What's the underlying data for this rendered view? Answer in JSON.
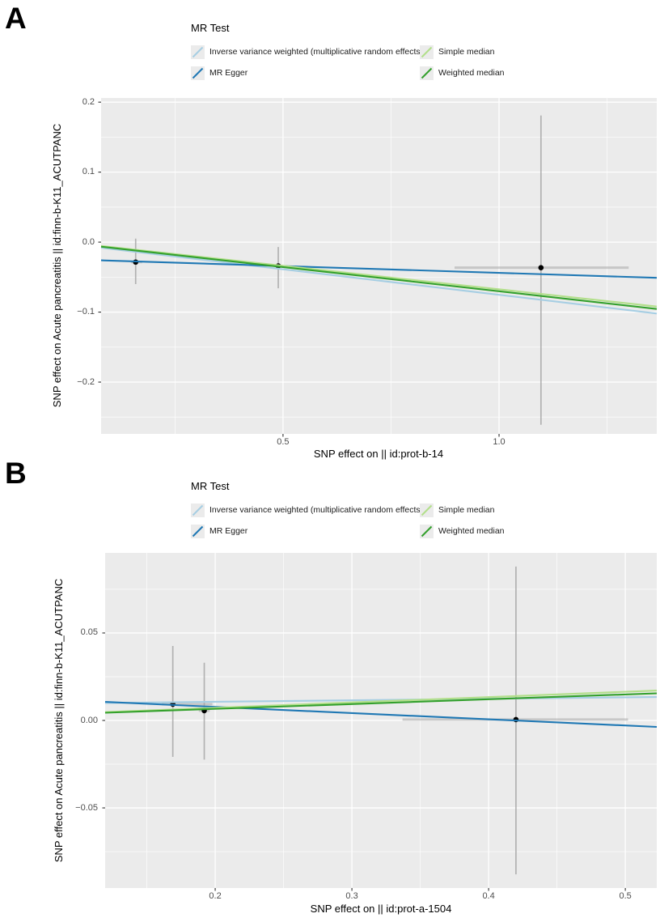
{
  "figure": {
    "description": "Two-panel MR scatter plot",
    "panel_labels": [
      "A",
      "B"
    ]
  },
  "colors": {
    "ivw": "#A6CEE3",
    "mr_egger": "#1F78B4",
    "simple_median": "#B2DF8A",
    "weighted_median": "#33A02C",
    "panel_background": "#EBEBEB",
    "gridline": "#FFFFFF",
    "error_bar": "#A3A3A3",
    "point": "#000000",
    "tick_text": "#4D4D4D",
    "tick_mark": "#333333"
  },
  "chart_data": [
    {
      "type": "scatter",
      "panel_label": "A",
      "title": "",
      "xlabel": "SNP effect on  || id:prot-b-14",
      "ylabel": "SNP effect on Acute pancreatitis || id:finn-b-K11_ACUTPANC",
      "xlim": [
        0.079,
        1.365
      ],
      "ylim": [
        -0.274,
        0.206
      ],
      "grid": "on",
      "legend_position": "top",
      "legend": {
        "title": "MR Test",
        "entries": [
          {
            "label": "Inverse variance weighted (multiplicative random effects)",
            "color": "#A6CEE3"
          },
          {
            "label": "MR Egger",
            "color": "#1F78B4"
          },
          {
            "label": "Simple median",
            "color": "#B2DF8A"
          },
          {
            "label": "Weighted median",
            "color": "#33A02C"
          }
        ]
      },
      "x_ticks": {
        "major": [
          {
            "v": 0.5,
            "label": "0.5"
          },
          {
            "v": 1.0,
            "label": "1.0"
          }
        ],
        "minor": [
          0.25,
          0.75,
          1.25
        ]
      },
      "y_ticks": {
        "major": [
          {
            "v": 0.2,
            "label": "0.2"
          },
          {
            "v": 0.1,
            "label": "0.1"
          },
          {
            "v": 0.0,
            "label": "0.0"
          },
          {
            "v": -0.1,
            "label": "−0.1"
          },
          {
            "v": -0.2,
            "label": "−0.2"
          }
        ],
        "minor": [
          0.15,
          0.05,
          -0.05,
          -0.15,
          -0.25
        ]
      },
      "points": [
        {
          "x": 0.159,
          "y": -0.0285,
          "x_lo": 0.148,
          "x_hi": 0.174,
          "y_lo": -0.06,
          "y_hi": 0.005
        },
        {
          "x": 0.489,
          "y": -0.034,
          "x_lo": 0.481,
          "x_hi": 0.497,
          "y_lo": -0.066,
          "y_hi": -0.007
        },
        {
          "x": 1.097,
          "y": -0.0365,
          "x_lo": 0.897,
          "x_hi": 1.3,
          "y_lo": -0.261,
          "y_hi": 0.181
        }
      ],
      "lines": [
        {
          "name": "Inverse variance weighted (multiplicative random effects)",
          "color": "#A6CEE3",
          "y_at_xmin": -0.008,
          "y_at_xmax": -0.102
        },
        {
          "name": "MR Egger",
          "color": "#1F78B4",
          "y_at_xmin": -0.026,
          "y_at_xmax": -0.051
        },
        {
          "name": "Simple median",
          "color": "#B2DF8A",
          "y_at_xmin": -0.0055,
          "y_at_xmax": -0.092
        },
        {
          "name": "Weighted median",
          "color": "#33A02C",
          "y_at_xmin": -0.0065,
          "y_at_xmax": -0.0955
        }
      ]
    },
    {
      "type": "scatter",
      "panel_label": "B",
      "title": "",
      "xlabel": "SNP effect on  || id:prot-a-1504",
      "ylabel": "SNP effect on Acute pancreatitis || id:finn-b-K11_ACUTPANC",
      "xlim": [
        0.1195,
        0.523
      ],
      "ylim": [
        -0.0958,
        0.0958
      ],
      "grid": "on",
      "legend_position": "top",
      "legend": {
        "title": "MR Test",
        "entries": [
          {
            "label": "Inverse variance weighted (multiplicative random effects)",
            "color": "#A6CEE3"
          },
          {
            "label": "MR Egger",
            "color": "#1F78B4"
          },
          {
            "label": "Simple median",
            "color": "#B2DF8A"
          },
          {
            "label": "Weighted median",
            "color": "#33A02C"
          }
        ]
      },
      "x_ticks": {
        "major": [
          {
            "v": 0.2,
            "label": "0.2"
          },
          {
            "v": 0.3,
            "label": "0.3"
          },
          {
            "v": 0.4,
            "label": "0.4"
          },
          {
            "v": 0.5,
            "label": "0.5"
          }
        ],
        "minor": [
          0.15,
          0.25,
          0.35,
          0.45
        ]
      },
      "y_ticks": {
        "major": [
          {
            "v": 0.05,
            "label": "0.05"
          },
          {
            "v": 0.0,
            "label": "0.00"
          },
          {
            "v": -0.05,
            "label": "−0.05"
          }
        ],
        "minor": [
          0.075,
          0.025,
          -0.025,
          -0.075
        ]
      },
      "points": [
        {
          "x": 0.169,
          "y": 0.0093,
          "x_lo": 0.161,
          "x_hi": 0.198,
          "y_lo": -0.0208,
          "y_hi": 0.0426
        },
        {
          "x": 0.192,
          "y": 0.0056,
          "x_lo": 0.188,
          "x_hi": 0.196,
          "y_lo": -0.0224,
          "y_hi": 0.033
        },
        {
          "x": 0.42,
          "y": 0.0005,
          "x_lo": 0.337,
          "x_hi": 0.502,
          "y_lo": -0.088,
          "y_hi": 0.088
        }
      ],
      "lines": [
        {
          "name": "Inverse variance weighted (multiplicative random effects)",
          "color": "#A6CEE3",
          "y_at_xmin": 0.01,
          "y_at_xmax": 0.0134
        },
        {
          "name": "MR Egger",
          "color": "#1F78B4",
          "y_at_xmin": 0.0106,
          "y_at_xmax": -0.0037
        },
        {
          "name": "Simple median",
          "color": "#B2DF8A",
          "y_at_xmin": 0.0048,
          "y_at_xmax": 0.0171
        },
        {
          "name": "Weighted median",
          "color": "#33A02C",
          "y_at_xmin": 0.0044,
          "y_at_xmax": 0.0155
        }
      ]
    }
  ]
}
